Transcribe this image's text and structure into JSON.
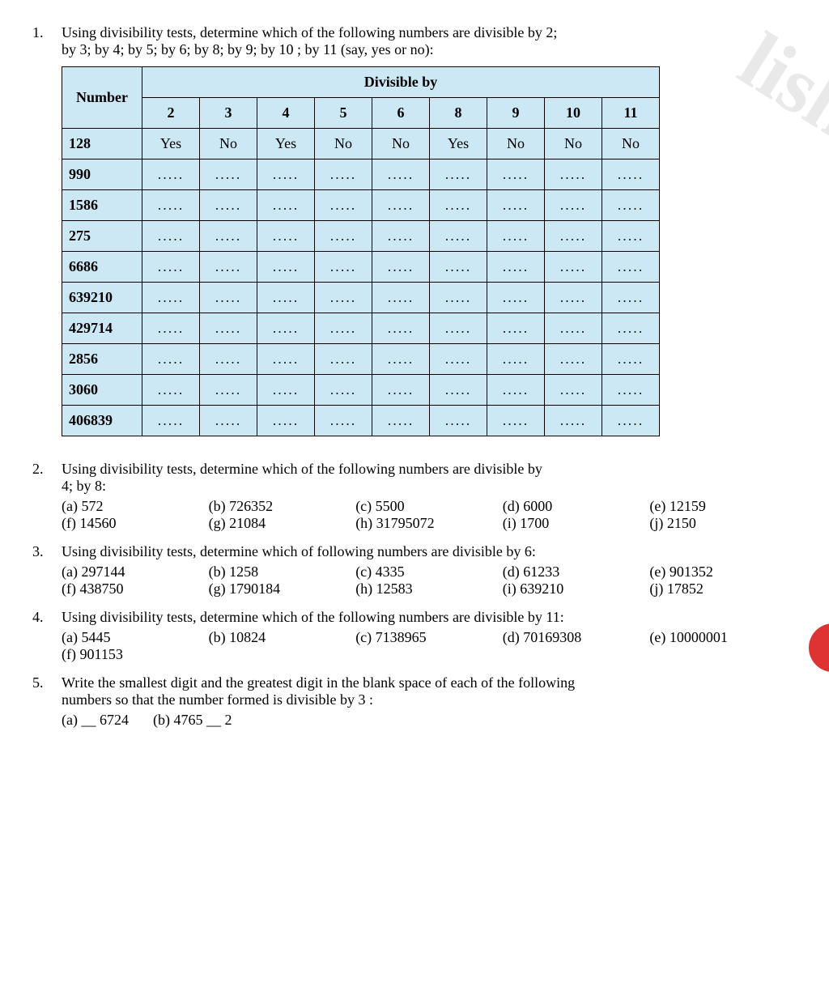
{
  "watermark": "lishe",
  "q1": {
    "num": "1.",
    "text_line1": "Using divisibility tests, determine which of the following numbers are divisible by 2;",
    "text_line2": "by 3; by 4; by 5; by 6; by 8; by 9; by 10 ; by 11 (say, yes or no):",
    "table": {
      "header_number": "Number",
      "header_divisible": "Divisible by",
      "divisors": [
        "2",
        "3",
        "4",
        "5",
        "6",
        "8",
        "9",
        "10",
        "11"
      ],
      "rows": [
        {
          "n": "128",
          "v": [
            "Yes",
            "No",
            "Yes",
            "No",
            "No",
            "Yes",
            "No",
            "No",
            "No"
          ]
        },
        {
          "n": "990",
          "v": [
            ".....",
            ".....",
            ".....",
            ".....",
            ".....",
            ".....",
            ".....",
            ".....",
            "....."
          ]
        },
        {
          "n": "1586",
          "v": [
            ".....",
            ".....",
            ".....",
            ".....",
            ".....",
            ".....",
            ".....",
            ".....",
            "....."
          ]
        },
        {
          "n": "275",
          "v": [
            ".....",
            ".....",
            ".....",
            ".....",
            ".....",
            ".....",
            ".....",
            ".....",
            "....."
          ]
        },
        {
          "n": "6686",
          "v": [
            ".....",
            ".....",
            ".....",
            ".....",
            ".....",
            ".....",
            ".....",
            ".....",
            "....."
          ]
        },
        {
          "n": "639210",
          "v": [
            ".....",
            ".....",
            ".....",
            ".....",
            ".....",
            ".....",
            ".....",
            ".....",
            "....."
          ]
        },
        {
          "n": "429714",
          "v": [
            ".....",
            ".....",
            ".....",
            ".....",
            ".....",
            ".....",
            ".....",
            ".....",
            "....."
          ]
        },
        {
          "n": "2856",
          "v": [
            ".....",
            ".....",
            ".....",
            ".....",
            ".....",
            ".....",
            ".....",
            ".....",
            "....."
          ]
        },
        {
          "n": "3060",
          "v": [
            ".....",
            ".....",
            ".....",
            ".....",
            ".....",
            ".....",
            ".....",
            ".....",
            "....."
          ]
        },
        {
          "n": "406839",
          "v": [
            ".....",
            ".....",
            ".....",
            ".....",
            ".....",
            ".....",
            ".....",
            ".....",
            "....."
          ]
        }
      ]
    }
  },
  "q2": {
    "num": "2.",
    "text_line1": "Using divisibility tests, determine which of the following  numbers are divisible by",
    "text_line2": "4; by 8:",
    "opts": [
      "(a) 572",
      "(b) 726352",
      "(c) 5500",
      "(d)  6000",
      "(e)  12159",
      "(f)  14560",
      "(g) 21084",
      "(h) 31795072",
      "(i)   1700",
      "(j)  2150"
    ]
  },
  "q3": {
    "num": "3.",
    "text": "Using divisibility tests, determine which of following numbers are divisible by 6:",
    "opts": [
      "(a) 297144",
      "(b) 1258",
      "(c) 4335",
      "(d)  61233",
      "(e)  901352",
      "(f)  438750",
      "(g) 1790184",
      "(h) 12583",
      "(i)   639210",
      "(j)  17852"
    ]
  },
  "q4": {
    "num": "4.",
    "text": "Using divisibility tests, determine which of the following numbers are divisible by 11:",
    "opts": [
      "(a) 5445",
      "(b) 10824",
      "(c) 7138965",
      "(d)  70169308",
      "(e)  10000001",
      "(f)  901153"
    ]
  },
  "q5": {
    "num": "5.",
    "text_line1": "Write the smallest digit and the greatest digit in the blank space of each of the following",
    "text_line2": "numbers so that the number formed is divisible by 3 :",
    "opts": [
      "(a) __ 6724",
      "(b) 4765 __ 2"
    ]
  }
}
